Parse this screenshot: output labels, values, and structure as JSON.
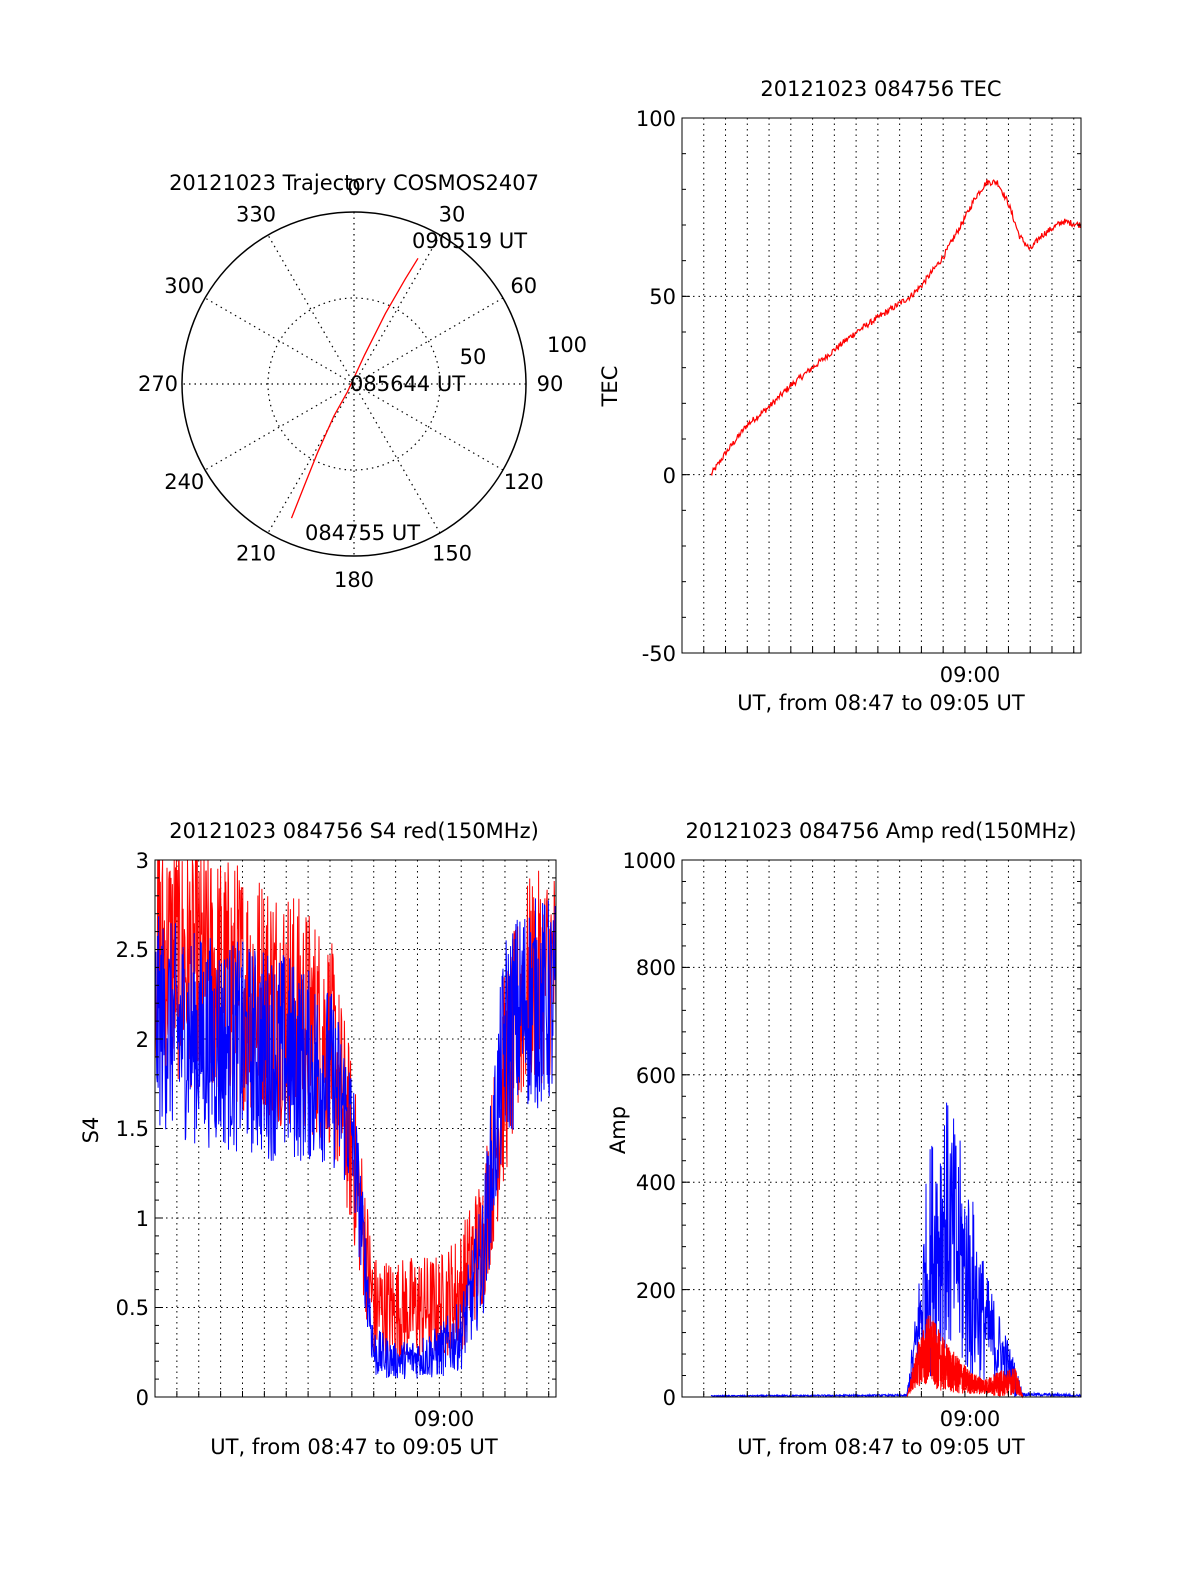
{
  "colors": {
    "red": "#ff0000",
    "blue": "#0000ff",
    "axis": "#000000",
    "grid": "#000000"
  },
  "chart_data": [
    {
      "type": "polar",
      "title": "20121023 Trajectory COSMOS2407",
      "angle_labels": [
        "0",
        "30",
        "60",
        "90",
        "120",
        "150",
        "180",
        "210",
        "240",
        "270",
        "300",
        "330"
      ],
      "radius_labels": [
        "50",
        "100"
      ],
      "radius_max": 100,
      "grid": true,
      "series": [
        {
          "color": "red",
          "points": [
            {
              "az": 205,
              "r": 86
            },
            {
              "az": 206,
              "r": 66
            },
            {
              "az": 208,
              "r": 45
            },
            {
              "az": 212,
              "r": 22
            },
            {
              "az": 220,
              "r": 6
            },
            {
              "az": 20,
              "r": 18
            },
            {
              "az": 24,
              "r": 45
            },
            {
              "az": 26,
              "r": 68
            },
            {
              "az": 27,
              "r": 82
            }
          ]
        }
      ],
      "annotations": [
        {
          "text": "090519 UT",
          "az": 27,
          "r": 82
        },
        {
          "text": "085644 UT",
          "az": 90,
          "r": 3
        },
        {
          "text": "084755 UT",
          "az": 205,
          "r": 86
        }
      ]
    },
    {
      "type": "line",
      "title": "20121023 084756 TEC",
      "xlabel": "UT, from 08:47 to 09:05 UT",
      "ylabel": "TEC",
      "xlim": [
        "08:47:00",
        "09:05:20"
      ],
      "ylim": [
        -50,
        100
      ],
      "yticks": [
        "-50",
        "0",
        "50",
        "100"
      ],
      "xtick_labels": [
        {
          "x": "09:00",
          "label": "09:00"
        }
      ],
      "grid": true,
      "series": [
        {
          "color": "red",
          "x": [
            "08:48:20",
            "08:49:00",
            "08:50:00",
            "08:51:00",
            "08:52:00",
            "08:53:00",
            "08:54:00",
            "08:55:00",
            "08:56:00",
            "08:57:00",
            "08:57:30",
            "08:58:00",
            "08:59:00",
            "09:00:00",
            "09:00:30",
            "09:01:00",
            "09:01:30",
            "09:02:00",
            "09:02:30",
            "09:03:00",
            "09:03:30",
            "09:04:00",
            "09:04:30",
            "09:05:20"
          ],
          "values": [
            0,
            6,
            14,
            19,
            25,
            30,
            35,
            40,
            44,
            48,
            50,
            53,
            61,
            72,
            78,
            82,
            82,
            76,
            67,
            63,
            67,
            69,
            71,
            70
          ]
        }
      ]
    },
    {
      "type": "line",
      "title": "20121023 084756 S4 red(150MHz)",
      "xlabel": "UT, from 08:47 to 09:05 UT",
      "ylabel": "S4",
      "xlim": [
        "08:47:00",
        "09:05:20"
      ],
      "ylim": [
        0,
        3
      ],
      "yticks": [
        "0",
        "0.5",
        "1",
        "1.5",
        "2",
        "2.5",
        "3"
      ],
      "xtick_labels": [
        {
          "x": "09:00",
          "label": "09:00"
        }
      ],
      "grid": true,
      "series": [
        {
          "color": "red",
          "x": [
            "08:47:00",
            "08:49:00",
            "08:51:00",
            "08:53:00",
            "08:55:00",
            "08:56:00",
            "08:57:00",
            "08:58:00",
            "08:59:00",
            "09:00:00",
            "09:01:00",
            "09:02:00",
            "09:03:00",
            "09:04:00",
            "09:05:20"
          ],
          "center": [
            2.5,
            2.4,
            2.3,
            2.2,
            2.0,
            1.4,
            0.5,
            0.48,
            0.5,
            0.5,
            0.6,
            0.9,
            1.8,
            2.3,
            2.4
          ],
          "spread": [
            0.7,
            0.7,
            0.7,
            0.7,
            0.6,
            0.5,
            0.3,
            0.3,
            0.3,
            0.3,
            0.35,
            0.4,
            0.6,
            0.6,
            0.6
          ]
        },
        {
          "color": "blue",
          "x": [
            "08:47:00",
            "08:49:00",
            "08:51:00",
            "08:53:00",
            "08:55:00",
            "08:56:00",
            "08:57:00",
            "08:58:00",
            "08:59:00",
            "09:00:00",
            "09:01:00",
            "09:02:00",
            "09:03:00",
            "09:04:00",
            "09:05:20"
          ],
          "center": [
            2.1,
            2.0,
            1.95,
            1.9,
            1.8,
            1.5,
            0.25,
            0.2,
            0.22,
            0.25,
            0.35,
            0.8,
            2.0,
            2.2,
            2.2
          ],
          "spread": [
            0.6,
            0.6,
            0.6,
            0.6,
            0.5,
            0.4,
            0.15,
            0.1,
            0.12,
            0.15,
            0.2,
            0.35,
            0.6,
            0.6,
            0.6
          ]
        }
      ]
    },
    {
      "type": "line",
      "title": "20121023 084756 Amp red(150MHz)",
      "xlabel": "UT, from 08:47 to 09:05 UT",
      "ylabel": "Amp",
      "xlim": [
        "08:47:00",
        "09:05:20"
      ],
      "ylim": [
        0,
        1000
      ],
      "yticks": [
        "0",
        "200",
        "400",
        "600",
        "800",
        "1000"
      ],
      "xtick_labels": [
        {
          "x": "09:00",
          "label": "09:00"
        }
      ],
      "grid": true,
      "series": [
        {
          "color": "blue",
          "x": [
            "08:48:20",
            "08:57:20",
            "08:57:50",
            "08:58:20",
            "08:59:00",
            "08:59:40",
            "09:00:20",
            "09:01:00",
            "09:01:40",
            "09:02:20",
            "09:02:40",
            "09:05:20"
          ],
          "center": [
            2,
            3,
            120,
            250,
            330,
            270,
            200,
            130,
            80,
            30,
            5,
            3
          ],
          "spread": [
            1,
            2,
            80,
            220,
            250,
            230,
            180,
            100,
            70,
            30,
            3,
            2
          ]
        },
        {
          "color": "red",
          "x": [
            "08:57:20",
            "08:57:50",
            "08:58:20",
            "08:59:00",
            "08:59:40",
            "09:00:20",
            "09:01:00",
            "09:01:40",
            "09:02:20",
            "09:02:40"
          ],
          "center": [
            0,
            60,
            90,
            60,
            40,
            25,
            20,
            25,
            30,
            0
          ],
          "spread": [
            0,
            40,
            70,
            50,
            35,
            20,
            15,
            25,
            25,
            0
          ]
        }
      ]
    }
  ]
}
